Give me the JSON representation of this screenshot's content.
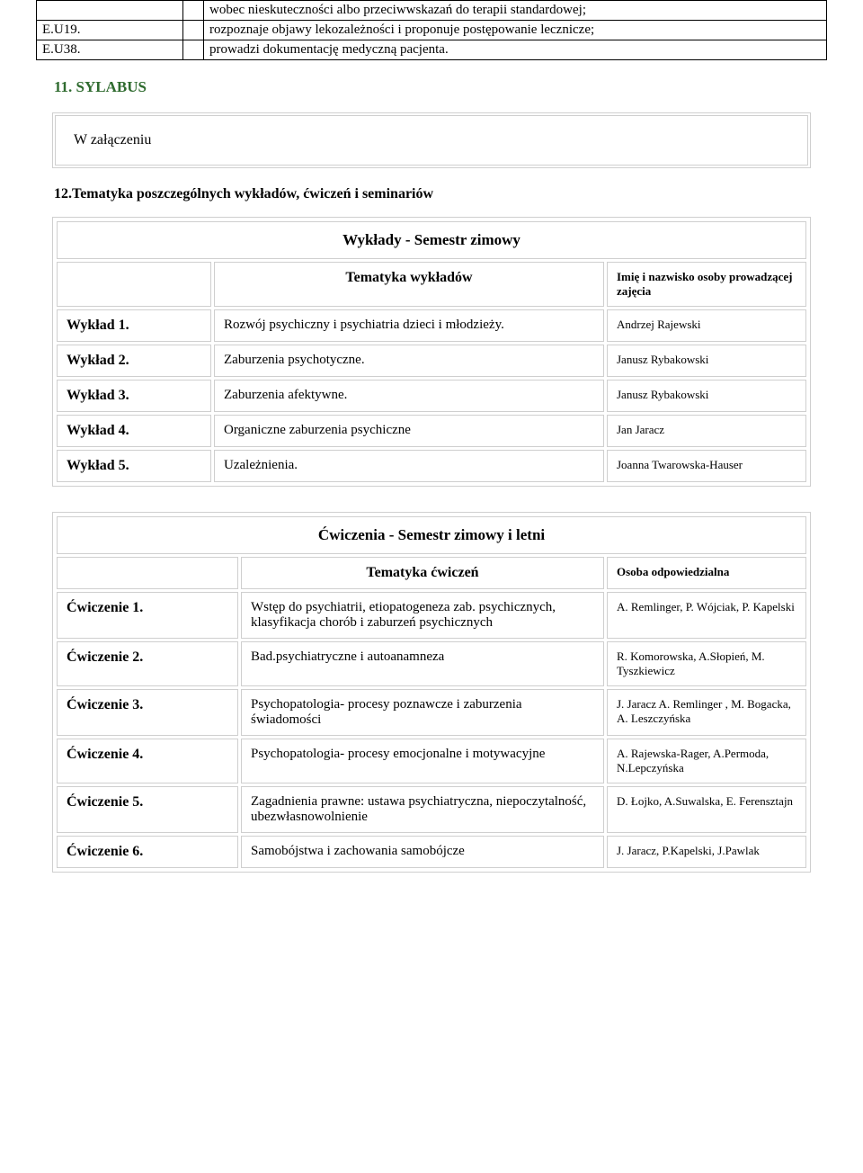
{
  "intro": {
    "rows": [
      {
        "code": "",
        "text": "wobec nieskuteczności albo przeciwwskazań do terapii standardowej;"
      },
      {
        "code": "E.U19.",
        "text": "rozpoznaje objawy lekozależności i proponuje postępowanie lecznicze;"
      },
      {
        "code": "E.U38.",
        "text": "prowadzi dokumentację medyczną pacjenta."
      }
    ]
  },
  "sylabus_heading": "11. SYLABUS",
  "attachment_text": "W załączeniu",
  "tematyka_heading": "12.Tematyka poszczególnych wykładów, ćwiczeń i seminariów",
  "lectures": {
    "title": "Wykłady - Semestr zimowy",
    "col_topic": "Tematyka wykładów",
    "col_person": "Imię i nazwisko osoby prowadzącej zajęcia",
    "rows": [
      {
        "label": "Wykład 1.",
        "topic": "Rozwój psychiczny i psychiatria dzieci i młodzieży.",
        "person": "Andrzej Rajewski"
      },
      {
        "label": "Wykład 2.",
        "topic": "Zaburzenia psychotyczne.",
        "person": "Janusz Rybakowski"
      },
      {
        "label": "Wykład 3.",
        "topic": "Zaburzenia afektywne.",
        "person": "Janusz Rybakowski"
      },
      {
        "label": "Wykład 4.",
        "topic": "Organiczne zaburzenia psychiczne",
        "person": "Jan Jaracz"
      },
      {
        "label": "Wykład 5.",
        "topic": "Uzależnienia.",
        "person": "Joanna Twarowska-Hauser"
      }
    ]
  },
  "exercises": {
    "title": "Ćwiczenia - Semestr zimowy i letni",
    "col_topic": "Tematyka ćwiczeń",
    "col_person": "Osoba odpowiedzialna",
    "rows": [
      {
        "label": "Ćwiczenie 1.",
        "topic": "Wstęp do psychiatrii, etiopatogeneza zab. psychicznych, klasyfikacja chorób i zaburzeń psychicznych",
        "person": "A. Remlinger, P. Wójciak, P. Kapelski"
      },
      {
        "label": "Ćwiczenie 2.",
        "topic": "Bad.psychiatryczne i autoanamneza",
        "person": "R. Komorowska, A.Słopień, M. Tyszkiewicz"
      },
      {
        "label": "Ćwiczenie 3.",
        "topic": "Psychopatologia- procesy poznawcze i zaburzenia świadomości",
        "person": "J. Jaracz  A. Remlinger , M. Bogacka,  A. Leszczyńska"
      },
      {
        "label": "Ćwiczenie 4.",
        "topic": "Psychopatologia- procesy emocjonalne i motywacyjne",
        "person": "A. Rajewska-Rager, A.Permoda, N.Lepczyńska"
      },
      {
        "label": "Ćwiczenie 5.",
        "topic": "Zagadnienia prawne: ustawa psychiatryczna, niepoczytalność, ubezwłasnowolnienie",
        "person": "D. Łojko,  A.Suwalska, E. Ferensztajn"
      },
      {
        "label": "Ćwiczenie 6.",
        "topic": "Samobójstwa i zachowania samobójcze",
        "person": " J. Jaracz, P.Kapelski, J.Pawlak"
      }
    ]
  },
  "colors": {
    "heading": "#2f6b2f",
    "border_light": "#cfcfcf",
    "border_dark": "#000000",
    "background": "#ffffff"
  }
}
